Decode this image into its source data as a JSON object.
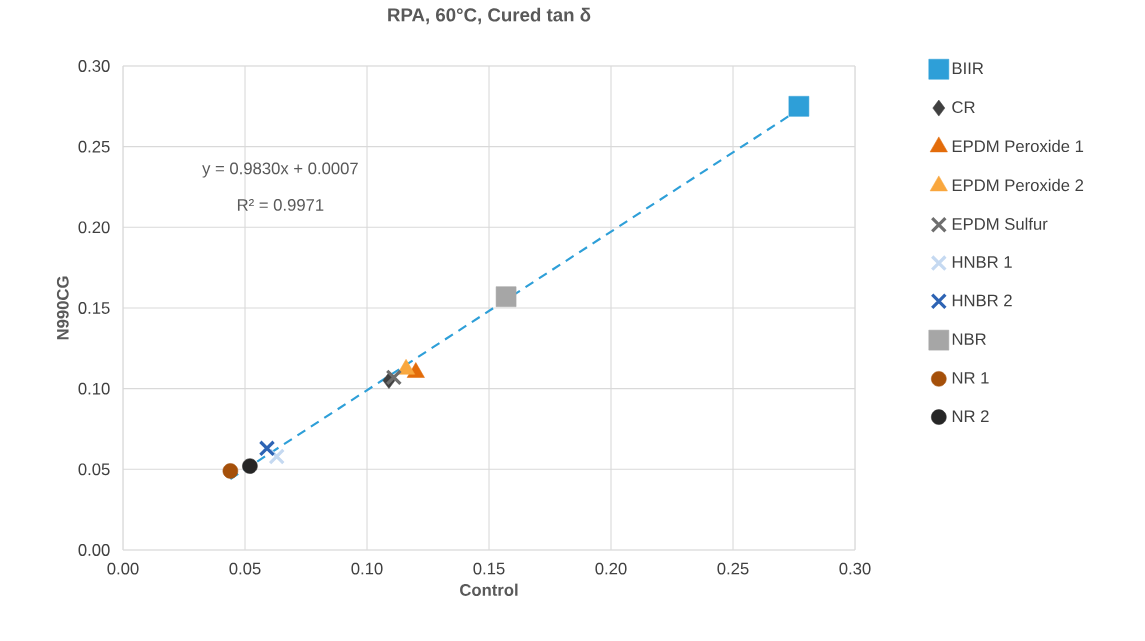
{
  "chart_data": {
    "type": "scatter",
    "title": "RPA, 60°C, Cured tan δ",
    "xlabel": "Control",
    "ylabel": "N990CG",
    "series": [
      {
        "name": "BIIR",
        "color": "#2e9fd8",
        "marker": "square",
        "x": [
          0.277
        ],
        "values": [
          0.275
        ]
      },
      {
        "name": "CR",
        "color": "#404040",
        "marker": "diamond",
        "x": [
          0.109
        ],
        "values": [
          0.105
        ]
      },
      {
        "name": "EPDM Peroxide 1",
        "color": "#e36c0a",
        "marker": "triangle",
        "x": [
          0.12
        ],
        "values": [
          0.11
        ]
      },
      {
        "name": "EPDM Peroxide 2",
        "color": "#f9a73e",
        "marker": "triangle",
        "x": [
          0.116
        ],
        "values": [
          0.112
        ]
      },
      {
        "name": "EPDM Sulfur",
        "color": "#6e6e6e",
        "marker": "cross",
        "x": [
          0.111
        ],
        "values": [
          0.107
        ]
      },
      {
        "name": "HNBR 1",
        "color": "#c5d9f1",
        "marker": "cross",
        "x": [
          0.063
        ],
        "values": [
          0.058
        ]
      },
      {
        "name": "HNBR 2",
        "color": "#2e64b4",
        "marker": "cross",
        "x": [
          0.059
        ],
        "values": [
          0.063
        ]
      },
      {
        "name": "NBR",
        "color": "#a6a6a6",
        "marker": "square",
        "x": [
          0.157
        ],
        "values": [
          0.157
        ]
      },
      {
        "name": "NR 1",
        "color": "#a5500a",
        "marker": "circle",
        "x": [
          0.044
        ],
        "values": [
          0.049
        ]
      },
      {
        "name": "NR 2",
        "color": "#262626",
        "marker": "circle",
        "x": [
          0.052
        ],
        "values": [
          0.052
        ]
      },
      {
        "type": "line",
        "color": "#2e9fd8",
        "line_style": "dashed",
        "marker": "none",
        "x": [
          0.044,
          0.277
        ],
        "values": [
          0.044,
          0.273
        ]
      }
    ],
    "annotations": [
      "y = 0.9830x + 0.0007",
      "R² = 0.9971"
    ],
    "xlim": [
      0,
      0.3
    ],
    "ylim": [
      0,
      0.3
    ],
    "xticks": [
      {
        "value": 0,
        "label": "0.00"
      },
      {
        "value": 0.05,
        "label": "0.05"
      },
      {
        "value": 0.1,
        "label": "0.10"
      },
      {
        "value": 0.15,
        "label": "0.15"
      },
      {
        "value": 0.2,
        "label": "0.20"
      },
      {
        "value": 0.25,
        "label": "0.25"
      },
      {
        "value": 0.3,
        "label": "0.30"
      }
    ],
    "yticks": [
      {
        "value": 0,
        "label": "0.00"
      },
      {
        "value": 0.05,
        "label": "0.05"
      },
      {
        "value": 0.1,
        "label": "0.10"
      },
      {
        "value": 0.15,
        "label": "0.15"
      },
      {
        "value": 0.2,
        "label": "0.20"
      },
      {
        "value": 0.25,
        "label": "0.25"
      },
      {
        "value": 0.3,
        "label": "0.30"
      }
    ],
    "grid": true,
    "legend": "right"
  }
}
